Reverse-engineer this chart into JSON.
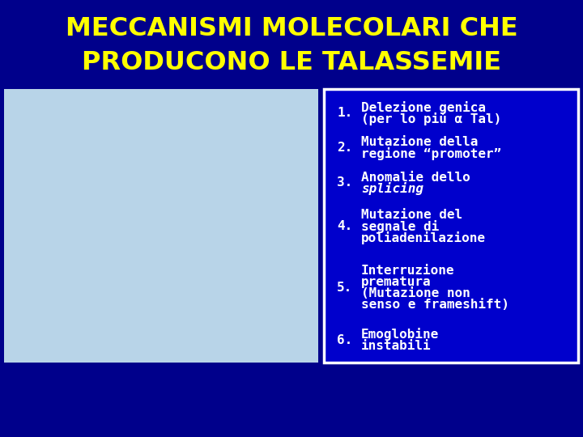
{
  "title_line1": "MECCANISMI MOLECOLARI CHE",
  "title_line2": "PRODUCONO LE TALASSEMIE",
  "title_color": "#FFFF00",
  "title_bg_color": "#00008B",
  "bg_color": "#00008B",
  "left_panel_bg": "#B8D4E8",
  "right_panel_bg": "#0000CC",
  "right_panel_border": "#FFFFFF",
  "item_text_color": "#FFFFFF",
  "item_number_color": "#FFFFFF",
  "figsize": [
    7.2,
    5.4
  ],
  "dpi": 100,
  "items": [
    {
      "number": "1.",
      "lines": [
        "Delezione genica",
        "(per lo più α Tal)"
      ],
      "italic_line": -1
    },
    {
      "number": "2.",
      "lines": [
        "Mutazione della",
        "regione “promoter”"
      ],
      "italic_line": -1
    },
    {
      "number": "3.",
      "lines": [
        "Anomalie dello",
        "splicing"
      ],
      "italic_line": 1
    },
    {
      "number": "4.",
      "lines": [
        "Mutazione del",
        "segnale di",
        "poliadenilazione"
      ],
      "italic_line": -1
    },
    {
      "number": "5.",
      "lines": [
        "Interruzione",
        "prematura",
        "(Mutazione non",
        "senso e frameshift)"
      ],
      "italic_line": -1
    },
    {
      "number": "6.",
      "lines": [
        "Emoglobine",
        "instabili"
      ],
      "italic_line": -1
    }
  ]
}
